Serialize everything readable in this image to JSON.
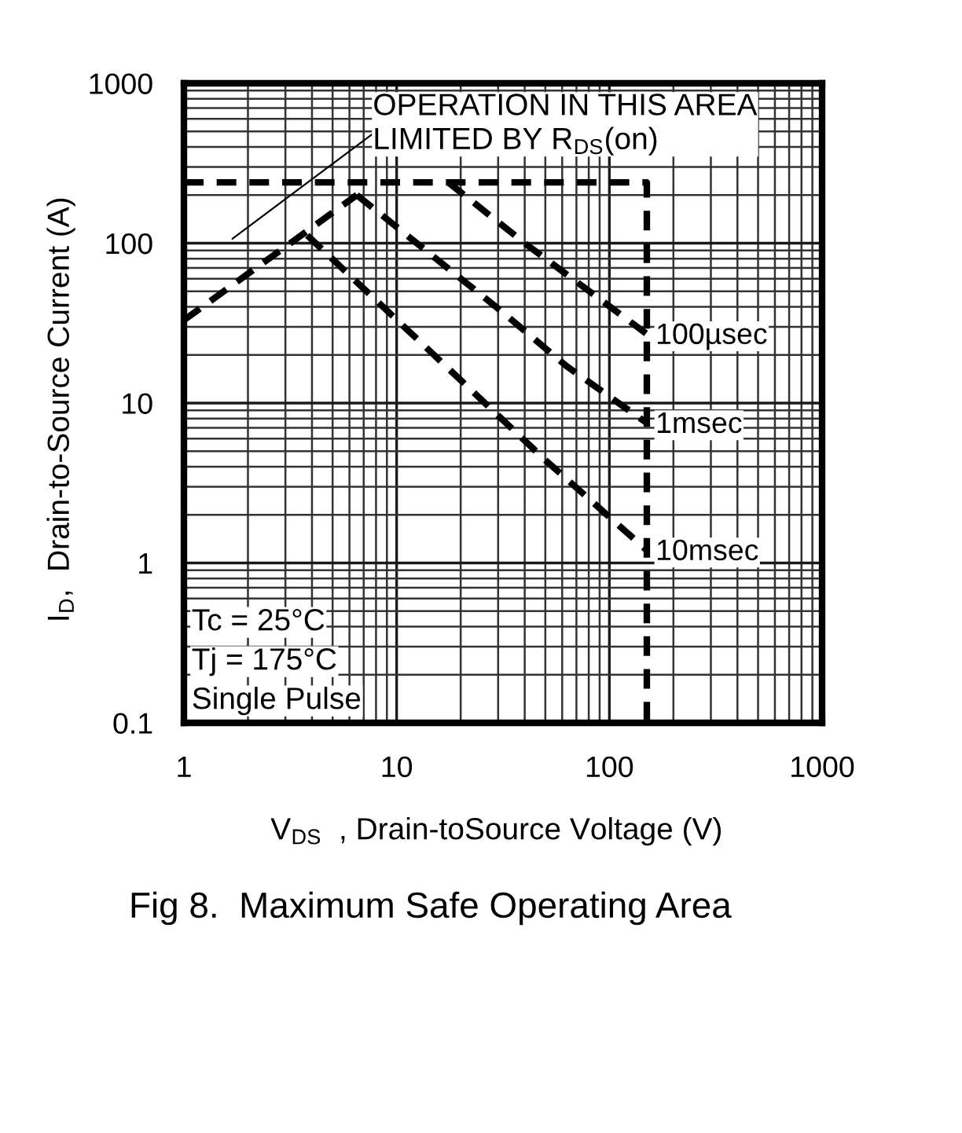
{
  "chart_data": {
    "type": "line",
    "title": "Fig 8.  Maximum Safe Operating Area",
    "xlabel": "V$_{DS}$  , Drain-toSource Voltage (V)",
    "ylabel": "I$_{D}$,  Drain-to-Source Current (A)",
    "log": "xy",
    "xlim": [
      1,
      1000
    ],
    "ylim": [
      0.1,
      1000
    ],
    "xticks": [
      1,
      10,
      100,
      1000
    ],
    "yticks": [
      0.1,
      1,
      10,
      100,
      1000
    ],
    "grid": true,
    "line_style": "dashed",
    "series": [
      {
        "color": "#000000",
        "x": [
          1,
          150,
          150
        ],
        "values": [
          240,
          240,
          0.1
        ]
      },
      {
        "color": "#000000",
        "x": [
          1,
          6.5
        ],
        "values": [
          33,
          200
        ]
      },
      {
        "name": "100µsec",
        "color": "#000000",
        "x": [
          17.5,
          40,
          150
        ],
        "values": [
          240,
          100,
          27
        ]
      },
      {
        "name": "1msec",
        "color": "#000000",
        "x": [
          6.5,
          30,
          63,
          150
        ],
        "values": [
          200,
          39,
          17,
          7.5
        ]
      },
      {
        "name": "10msec",
        "color": "#000000",
        "x": [
          3.8,
          50,
          150
        ],
        "values": [
          112,
          4.4,
          1.2
        ]
      }
    ],
    "annotations": [
      "OPERATION IN THIS AREA\nLIMITED BY R$_{DS}$(on)",
      "Tc = 25°C",
      "Tj = 175°C",
      "Single Pulse"
    ]
  }
}
